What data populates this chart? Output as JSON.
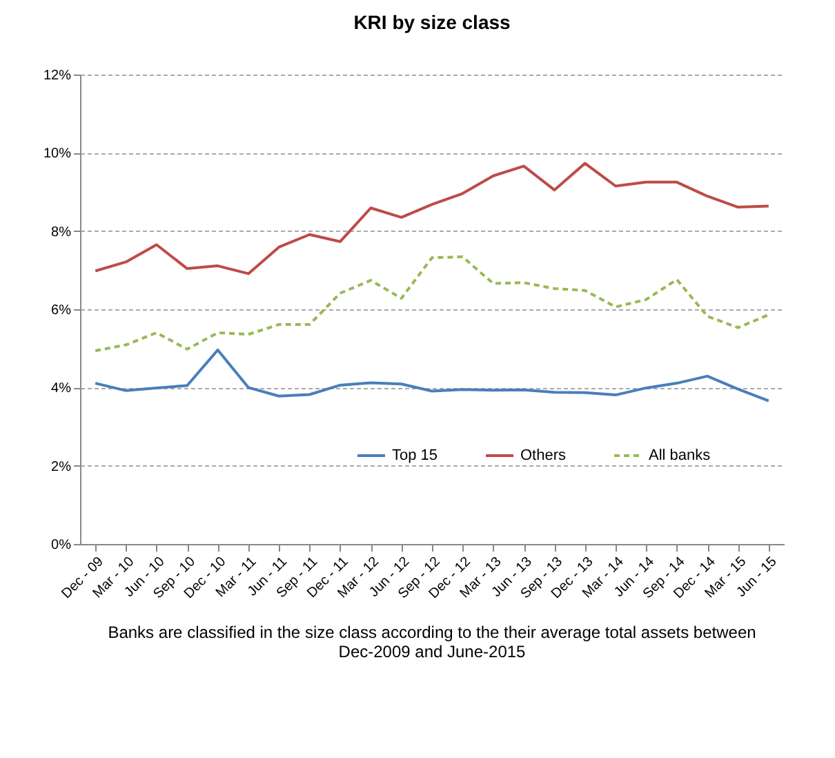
{
  "chart_data": {
    "type": "line",
    "title": "KRI by size class",
    "categories": [
      "Dec - 09",
      "Mar - 10",
      "Jun - 10",
      "Sep - 10",
      "Dec - 10",
      "Mar - 11",
      "Jun - 11",
      "Sep - 11",
      "Dec - 11",
      "Mar - 12",
      "Jun - 12",
      "Sep - 12",
      "Dec - 12",
      "Mar - 13",
      "Jun - 13",
      "Sep - 13",
      "Dec - 13",
      "Mar - 14",
      "Jun - 14",
      "Sep - 14",
      "Dec - 14",
      "Mar - 15",
      "Jun - 15"
    ],
    "series": [
      {
        "name": "Top 15",
        "color": "#4a7ebb",
        "line_style": "solid",
        "values": [
          4.11,
          3.92,
          3.99,
          4.05,
          4.96,
          4.0,
          3.78,
          3.82,
          4.06,
          4.12,
          4.09,
          3.91,
          3.95,
          3.93,
          3.94,
          3.88,
          3.87,
          3.81,
          3.99,
          4.11,
          4.29,
          3.96,
          3.66
        ]
      },
      {
        "name": "Others",
        "color": "#be4b48",
        "line_style": "solid",
        "values": [
          6.98,
          7.21,
          7.65,
          7.04,
          7.11,
          6.91,
          7.59,
          7.91,
          7.73,
          8.59,
          8.35,
          8.68,
          8.96,
          9.41,
          9.66,
          9.05,
          9.73,
          9.15,
          9.25,
          9.25,
          8.89,
          8.61,
          8.64
        ]
      },
      {
        "name": "All banks",
        "color": "#98b954",
        "line_style": "dashed",
        "values": [
          4.94,
          5.09,
          5.4,
          4.98,
          5.4,
          5.36,
          5.61,
          5.61,
          6.41,
          6.74,
          6.28,
          7.32,
          7.34,
          6.66,
          6.68,
          6.53,
          6.48,
          6.06,
          6.25,
          6.76,
          5.82,
          5.53,
          5.86
        ]
      }
    ],
    "ylim": [
      0,
      12
    ],
    "yticks": [
      {
        "value": 0,
        "label": "0%"
      },
      {
        "value": 2,
        "label": "2%"
      },
      {
        "value": 4,
        "label": "4%"
      },
      {
        "value": 6,
        "label": "6%"
      },
      {
        "value": 8,
        "label": "8%"
      },
      {
        "value": 10,
        "label": "10%"
      },
      {
        "value": 12,
        "label": "12%"
      }
    ],
    "grid": "y",
    "legend": "bottom",
    "marker": "none",
    "annotations": [
      "Banks are classified in the size class according to the their average total assets between Dec-2009 and June-2015"
    ]
  }
}
